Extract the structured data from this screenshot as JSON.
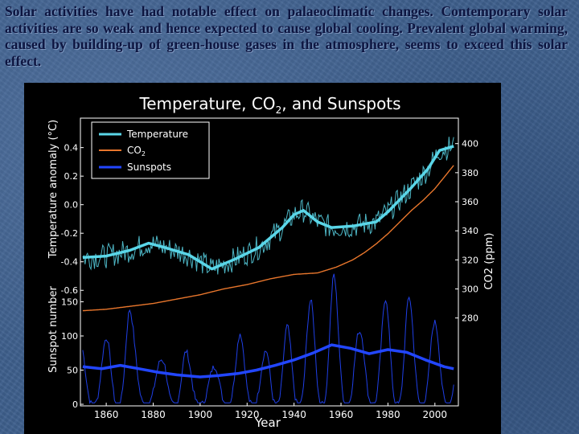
{
  "slide": {
    "text": "Solar activities have had notable effect on palaeoclimatic changes. Contemporary solar activities are so weak and hence expected to cause global cooling. Prevalent global warming, caused by building-up of green-house gases in the atmosphere, seems to exceed this solar effect."
  },
  "colors": {
    "background": "#3e5f8c",
    "chart_bg": "#000000",
    "temperature": "#5ad6e8",
    "co2": "#e8762c",
    "sunspots": "#2246ff",
    "text": "#0d1540"
  },
  "chart_data": {
    "type": "line",
    "title": "Temperature, CO",
    "title_subscript": "2",
    "title_suffix": ", and Sunspots",
    "xlabel": "Year",
    "x_ticks": [
      "1860",
      "1880",
      "1900",
      "1920",
      "1940",
      "1960",
      "1980",
      "2000"
    ],
    "xlim": [
      1849,
      2010
    ],
    "panels": {
      "upper": {
        "ylabel": "Temperature anomaly (°C)",
        "ylim": [
          -0.7,
          0.55
        ],
        "y_ticks": [
          "0.4",
          "0.2",
          "0.0",
          "-0.2",
          "-0.4",
          "-0.6"
        ],
        "right_ylabel": "CO2 (ppm)",
        "right_ylim": [
          235,
          412
        ],
        "right_ticks": [
          "400",
          "380",
          "360",
          "340",
          "320",
          "300",
          "280"
        ]
      },
      "lower": {
        "ylabel": "Sunspot number",
        "ylim": [
          0,
          200
        ],
        "y_ticks": [
          "150",
          "100",
          "50",
          "0"
        ]
      }
    },
    "legend": {
      "placement": "top-left",
      "entries": [
        "Temperature",
        "CO",
        "Sunspots"
      ],
      "co2_subscript": "2"
    },
    "series": [
      {
        "name": "Temperature (smoothed)",
        "axis": "temperature",
        "x": [
          1850,
          1860,
          1870,
          1878,
          1885,
          1895,
          1905,
          1915,
          1925,
          1935,
          1940,
          1944,
          1950,
          1956,
          1965,
          1975,
          1980,
          1990,
          1997,
          2002,
          2008
        ],
        "values": [
          -0.37,
          -0.36,
          -0.32,
          -0.27,
          -0.3,
          -0.35,
          -0.45,
          -0.38,
          -0.3,
          -0.16,
          -0.07,
          -0.04,
          -0.12,
          -0.16,
          -0.15,
          -0.12,
          -0.05,
          0.12,
          0.25,
          0.38,
          0.41
        ]
      },
      {
        "name": "CO2",
        "axis": "co2",
        "x": [
          1850,
          1860,
          1870,
          1880,
          1890,
          1900,
          1910,
          1920,
          1930,
          1940,
          1950,
          1958,
          1965,
          1970,
          1975,
          1980,
          1985,
          1990,
          1995,
          2000,
          2008
        ],
        "values": [
          285,
          286,
          288,
          290,
          293,
          296,
          300,
          303,
          307,
          310,
          311,
          315,
          320,
          325,
          331,
          338,
          346,
          354,
          361,
          369,
          385
        ]
      },
      {
        "name": "Sunspots (smoothed)",
        "axis": "sunspots",
        "x": [
          1850,
          1858,
          1866,
          1874,
          1882,
          1890,
          1900,
          1908,
          1916,
          1924,
          1932,
          1940,
          1948,
          1956,
          1964,
          1972,
          1980,
          1988,
          1996,
          2004,
          2008
        ],
        "values": [
          55,
          52,
          57,
          52,
          47,
          43,
          40,
          42,
          45,
          50,
          57,
          65,
          75,
          87,
          82,
          74,
          80,
          76,
          65,
          55,
          52
        ]
      },
      {
        "name": "Sunspots (yearly cycle peaks)",
        "axis": "sunspots",
        "x": [
          1860,
          1870,
          1884,
          1894,
          1906,
          1917,
          1928,
          1937,
          1947,
          1957,
          1968,
          1979,
          1989,
          2000
        ],
        "values": [
          97,
          139,
          64,
          78,
          54,
          104,
          78,
          114,
          152,
          190,
          106,
          155,
          158,
          120
        ]
      }
    ]
  }
}
